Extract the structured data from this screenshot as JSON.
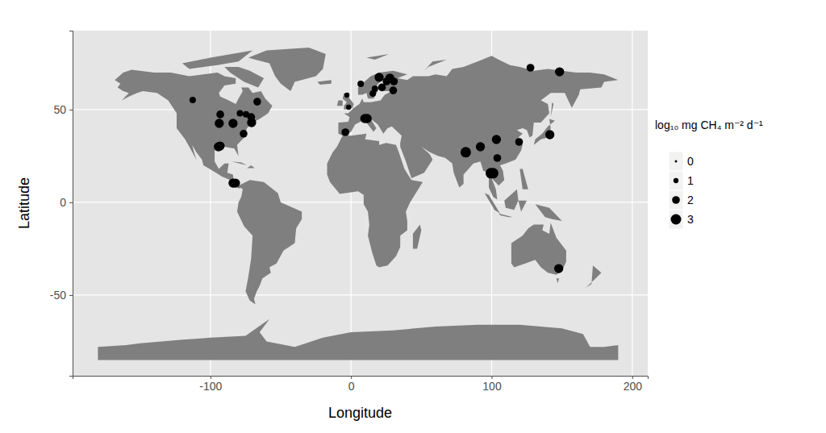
{
  "chart_data": {
    "type": "scatter",
    "xlabel": "Longitude",
    "ylabel": "Latitude",
    "xlim": [
      -198,
      211
    ],
    "ylim": [
      -93.5,
      92.6
    ],
    "xticks": [
      -100,
      0,
      100,
      200
    ],
    "yticks": [
      -50,
      0,
      50
    ],
    "grid": true,
    "color": "#000000",
    "marker": "circle",
    "x": [
      -112.6,
      -93,
      -93.7,
      -83.9,
      -79,
      -74.7,
      -71,
      -66.7,
      -70.7,
      -76.4,
      -94.3,
      -93.1,
      -83.9,
      -82.2,
      -2.9,
      -1.7,
      -4,
      9.8,
      11.5,
      6.9,
      15.5,
      17,
      20,
      22,
      25.3,
      27.6,
      30.5,
      30,
      127.6,
      148.3,
      81.6,
      92,
      103.4,
      104,
      119.5,
      141.4,
      99.4,
      101.1,
      147.7
    ],
    "values": [
      55.2,
      47.4,
      42.6,
      42.6,
      48,
      47.5,
      46,
      54.3,
      43,
      37,
      30,
      30.4,
      10.4,
      10.4,
      57.8,
      51.3,
      37.8,
      45.2,
      45.2,
      63.9,
      58.7,
      61.3,
      67.4,
      62,
      65.2,
      67,
      65.2,
      60.4,
      72.6,
      70.4,
      27,
      30,
      33.9,
      23.9,
      32.6,
      36.5,
      15.7,
      15.7,
      -35.7
    ],
    "sizes": [
      1.5,
      2,
      2.5,
      2.5,
      1.5,
      1.5,
      2,
      2,
      2.5,
      2,
      2.5,
      2.5,
      2.5,
      2.5,
      1,
      1,
      2,
      2.5,
      2.5,
      1.5,
      1.5,
      1.5,
      2.5,
      2,
      2,
      2.5,
      2,
      2,
      2,
      2.5,
      3,
      2.5,
      2.5,
      2,
      2,
      2.5,
      3,
      3,
      2.5
    ],
    "size_legend": {
      "title": "log₁₀ mg CH₄ m⁻² d⁻¹",
      "ticks": [
        0,
        1,
        2,
        3
      ]
    }
  }
}
